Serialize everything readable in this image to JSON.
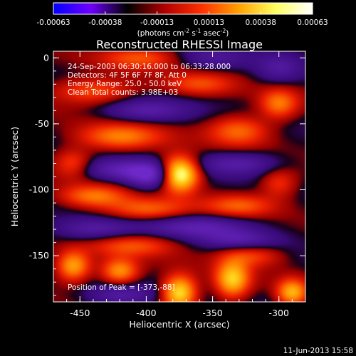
{
  "chart_data": {
    "type": "heatmap",
    "title": "Reconstructed RHESSI Image",
    "xlabel": "Heliocentric X (arcsec)",
    "ylabel": "Heliocentric Y (arcsec)",
    "xlim": [
      -470,
      -280
    ],
    "ylim": [
      -185,
      5
    ],
    "x_ticks": [
      -450,
      -400,
      -350,
      -300
    ],
    "y_ticks": [
      0,
      -50,
      -100,
      -150
    ],
    "colorbar": {
      "ticks": [
        "-0.00063",
        "-0.00038",
        "-0.00013",
        "0.00013",
        "0.00038",
        "0.00063"
      ],
      "min": -0.00063,
      "max": 0.00063,
      "unit_label": {
        "lead": "(photons cm",
        "exp1": "-2",
        "mid1": " s",
        "exp2": "-1",
        "mid2": " asec",
        "exp3": "-2",
        "tail": ")"
      },
      "colors": [
        "#0000ff",
        "#7000ff",
        "#000000",
        "#b00000",
        "#ff3000",
        "#ffa000",
        "#ffff60",
        "#ffffff"
      ]
    },
    "annotations": [
      "24-Sep-2003 06:30:16.000 to 06:33:28.000",
      "Detectors: 4F 5F 6F 7F 8F, Att 0",
      "Energy Range: 25.0 - 50.0 keV",
      "Clean    Total counts: 3.98E+03"
    ],
    "peak_label": "Position of Peak = [-373,-88]",
    "peak": {
      "x": -373,
      "y": -88
    },
    "sources": [
      {
        "x": -375,
        "y": -88,
        "amp": 1.0,
        "sx": 10,
        "sy": 9
      },
      {
        "x": -420,
        "y": -60,
        "amp": 0.42,
        "sx": 22,
        "sy": 7
      },
      {
        "x": -330,
        "y": -55,
        "amp": 0.38,
        "sx": 16,
        "sy": 8
      },
      {
        "x": -300,
        "y": -35,
        "amp": 0.4,
        "sx": 10,
        "sy": 8
      },
      {
        "x": -440,
        "y": -25,
        "amp": 0.34,
        "sx": 22,
        "sy": 7
      },
      {
        "x": -360,
        "y": -20,
        "amp": 0.28,
        "sx": 18,
        "sy": 6
      },
      {
        "x": -440,
        "y": -105,
        "amp": 0.4,
        "sx": 18,
        "sy": 6
      },
      {
        "x": -400,
        "y": -115,
        "amp": 0.36,
        "sx": 22,
        "sy": 6
      },
      {
        "x": -330,
        "y": -112,
        "amp": 0.32,
        "sx": 18,
        "sy": 6
      },
      {
        "x": -410,
        "y": -142,
        "amp": 0.3,
        "sx": 22,
        "sy": 6
      },
      {
        "x": -320,
        "y": -150,
        "amp": 0.28,
        "sx": 16,
        "sy": 6
      },
      {
        "x": -455,
        "y": -158,
        "amp": 0.55,
        "sx": 9,
        "sy": 8
      },
      {
        "x": -420,
        "y": -162,
        "amp": 0.5,
        "sx": 10,
        "sy": 7
      },
      {
        "x": -375,
        "y": -178,
        "amp": 0.72,
        "sx": 9,
        "sy": 9
      },
      {
        "x": -335,
        "y": -168,
        "amp": 0.62,
        "sx": 9,
        "sy": 10
      },
      {
        "x": -290,
        "y": -178,
        "amp": 0.55,
        "sx": 8,
        "sy": 7
      },
      {
        "x": -405,
        "y": 0,
        "amp": 0.3,
        "sx": 20,
        "sy": 6
      },
      {
        "x": -455,
        "y": -80,
        "amp": 0.3,
        "sx": 10,
        "sy": 8
      },
      {
        "x": -300,
        "y": -95,
        "amp": 0.28,
        "sx": 10,
        "sy": 8
      },
      {
        "x": -395,
        "y": -90,
        "amp": -0.45,
        "sx": 14,
        "sy": 7
      },
      {
        "x": -420,
        "y": -85,
        "amp": -0.35,
        "sx": 22,
        "sy": 6
      },
      {
        "x": -400,
        "y": -40,
        "amp": -0.32,
        "sx": 22,
        "sy": 6
      },
      {
        "x": -330,
        "y": -80,
        "amp": -0.32,
        "sx": 22,
        "sy": 6
      },
      {
        "x": -360,
        "y": -128,
        "amp": -0.35,
        "sx": 28,
        "sy": 6
      },
      {
        "x": -440,
        "y": -130,
        "amp": -0.3,
        "sx": 22,
        "sy": 6
      },
      {
        "x": -330,
        "y": -138,
        "amp": -0.28,
        "sx": 20,
        "sy": 5
      },
      {
        "x": -420,
        "y": -180,
        "amp": -0.3,
        "sx": 18,
        "sy": 6
      },
      {
        "x": -300,
        "y": -8,
        "amp": -0.25,
        "sx": 12,
        "sy": 8
      },
      {
        "x": -350,
        "y": 0,
        "amp": -0.22,
        "sx": 18,
        "sy": 6
      }
    ]
  },
  "footer": {
    "date": "11-Jun-2013 15:58"
  }
}
